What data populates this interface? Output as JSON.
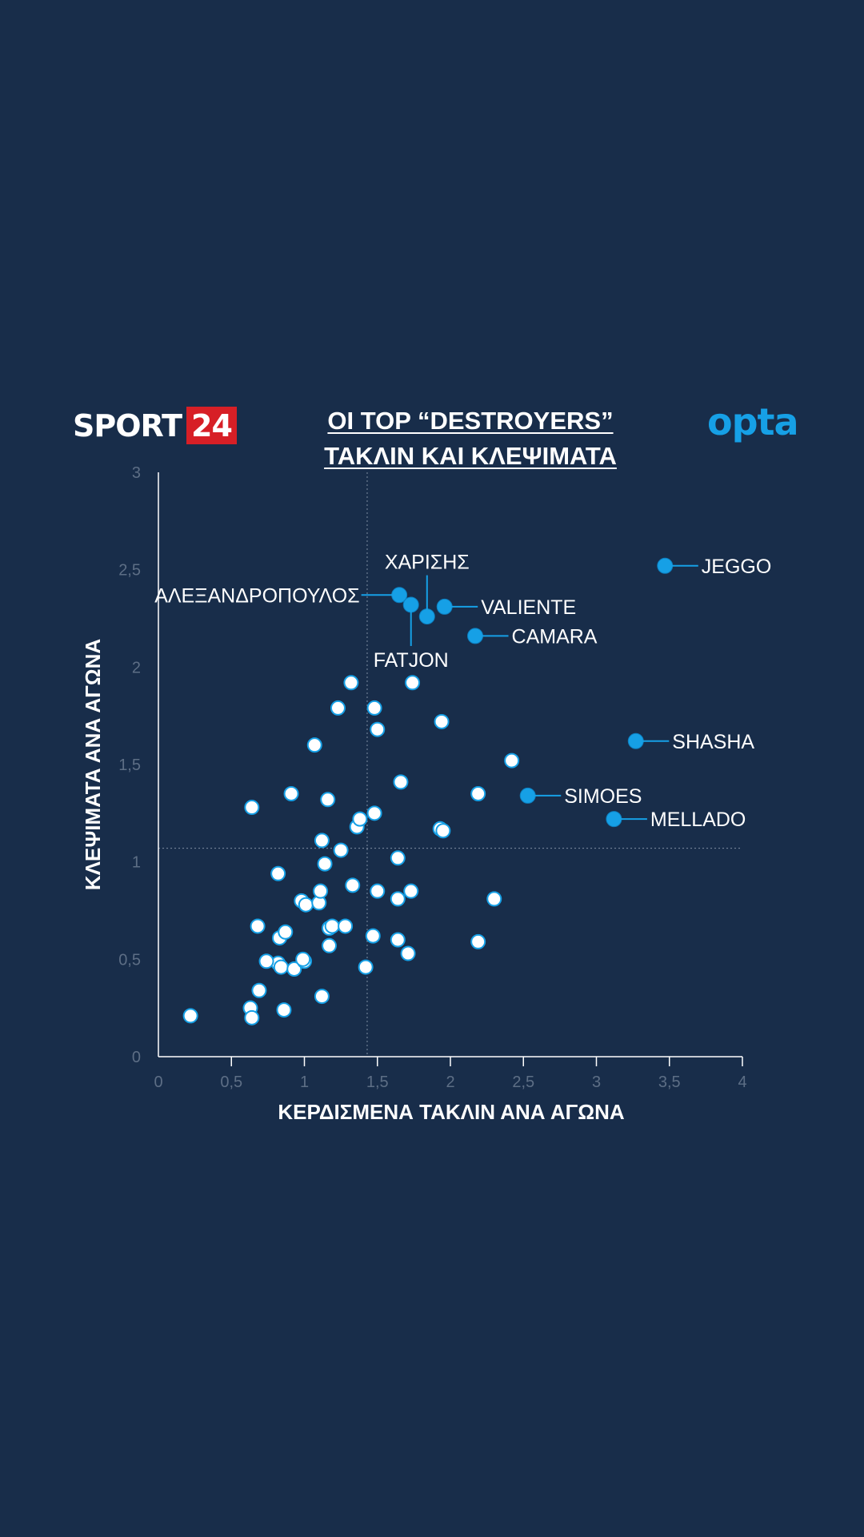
{
  "brand": {
    "sport": "SPORT",
    "number": "24",
    "partner": "opta"
  },
  "header": {
    "title_line1": "ΟΙ TOP “DESTROYERS”",
    "title_line2": "ΤΑΚΛΙΝ ΚΑΙ ΚΛΕΨΙΜΑΤΑ"
  },
  "colors": {
    "background": "#182d4a",
    "highlight": "#16a0e6",
    "brand_red": "#d71f26",
    "axis": "#ffffff",
    "tick": "#5d6e85"
  },
  "chart_data": {
    "type": "scatter",
    "title": "ΟΙ TOP “DESTROYERS” ΤΑΚΛΙΝ ΚΑΙ ΚΛΕΨΙΜΑΤΑ",
    "xlabel": "ΚΕΡΔΙΣΜΕΝΑ ΤΑΚΛΙΝ ΑΝΑ ΑΓΩΝΑ",
    "ylabel": "ΚΛΕΨΙΜΑΤΑ ΑΝΑ ΑΓΩΝΑ",
    "xlim": [
      0,
      4
    ],
    "ylim": [
      0,
      3
    ],
    "x_ticks": [
      "0",
      "0,5",
      "1",
      "1,5",
      "2",
      "2,5",
      "3",
      "3,5",
      "4"
    ],
    "y_ticks": [
      "0",
      "0,5",
      "1",
      "1,5",
      "2",
      "2,5",
      "3"
    ],
    "reference_lines": {
      "x": 1.43,
      "y": 1.07
    },
    "highlighted": [
      {
        "name": "JEGGO",
        "x": 3.47,
        "y": 2.52
      },
      {
        "name": "ΑΛΕΞΑΝΔΡΟΠΟΥΛΟΣ",
        "x": 1.65,
        "y": 2.37
      },
      {
        "name": "ΧΑΡΙΣΗΣ",
        "x": 1.84,
        "y": 2.26
      },
      {
        "name": "FATJON",
        "x": 1.73,
        "y": 2.32
      },
      {
        "name": "VALIENTE",
        "x": 1.96,
        "y": 2.31
      },
      {
        "name": "CAMARA",
        "x": 2.17,
        "y": 2.16
      },
      {
        "name": "SHASHA",
        "x": 3.27,
        "y": 1.62
      },
      {
        "name": "SIMOES",
        "x": 2.53,
        "y": 1.34
      },
      {
        "name": "MELLADO",
        "x": 3.12,
        "y": 1.22
      }
    ],
    "others": [
      [
        0.22,
        0.21
      ],
      [
        0.63,
        0.25
      ],
      [
        0.64,
        0.2
      ],
      [
        0.86,
        0.24
      ],
      [
        1.12,
        0.31
      ],
      [
        0.69,
        0.34
      ],
      [
        0.82,
        0.48
      ],
      [
        0.84,
        0.46
      ],
      [
        0.74,
        0.49
      ],
      [
        0.93,
        0.45
      ],
      [
        1.0,
        0.49
      ],
      [
        0.99,
        0.5
      ],
      [
        1.42,
        0.46
      ],
      [
        0.68,
        0.67
      ],
      [
        0.83,
        0.61
      ],
      [
        0.87,
        0.64
      ],
      [
        1.17,
        0.57
      ],
      [
        1.17,
        0.66
      ],
      [
        1.19,
        0.67
      ],
      [
        1.28,
        0.67
      ],
      [
        1.47,
        0.62
      ],
      [
        1.64,
        0.6
      ],
      [
        1.71,
        0.53
      ],
      [
        2.19,
        0.59
      ],
      [
        2.3,
        0.81
      ],
      [
        0.98,
        0.8
      ],
      [
        1.01,
        0.78
      ],
      [
        1.1,
        0.79
      ],
      [
        1.11,
        0.85
      ],
      [
        1.33,
        0.88
      ],
      [
        1.5,
        0.85
      ],
      [
        1.64,
        0.81
      ],
      [
        1.73,
        0.85
      ],
      [
        0.82,
        0.94
      ],
      [
        1.14,
        0.99
      ],
      [
        1.25,
        1.06
      ],
      [
        1.64,
        1.02
      ],
      [
        1.12,
        1.11
      ],
      [
        1.36,
        1.18
      ],
      [
        1.38,
        1.22
      ],
      [
        1.48,
        1.25
      ],
      [
        1.93,
        1.17
      ],
      [
        1.95,
        1.16
      ],
      [
        0.64,
        1.28
      ],
      [
        0.91,
        1.35
      ],
      [
        1.16,
        1.32
      ],
      [
        1.66,
        1.41
      ],
      [
        2.19,
        1.35
      ],
      [
        2.42,
        1.52
      ],
      [
        1.07,
        1.6
      ],
      [
        1.5,
        1.68
      ],
      [
        1.94,
        1.72
      ],
      [
        1.23,
        1.79
      ],
      [
        1.48,
        1.79
      ],
      [
        1.32,
        1.92
      ],
      [
        1.74,
        1.92
      ]
    ]
  }
}
